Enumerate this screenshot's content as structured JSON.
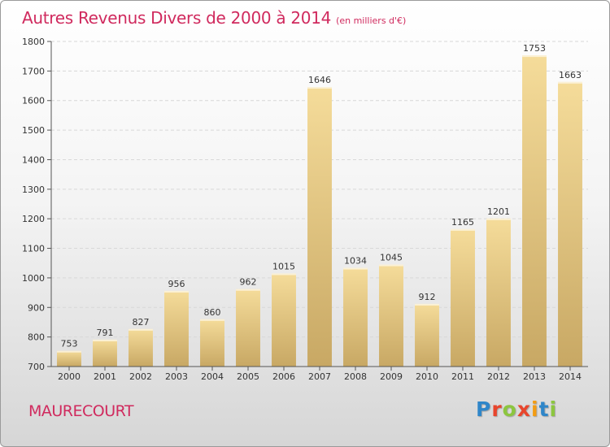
{
  "header": {
    "title": "Autres Revenus Divers de 2000 à 2014",
    "subtitle": "(en milliers d'€)"
  },
  "commune": "MAURECOURT",
  "logo": {
    "letters": [
      "P",
      "r",
      "o",
      "x",
      "i",
      "t",
      "i"
    ],
    "colors": [
      "#2f86c9",
      "#e8452c",
      "#8cc63f",
      "#e8452c",
      "#f39c12",
      "#2f86c9",
      "#8cc63f"
    ]
  },
  "colors": {
    "bar_light": "#f5dc9a",
    "bar_dark": "#c8a864",
    "accent": "#d02a5e"
  },
  "chart_data": {
    "type": "bar",
    "title": "Autres Revenus Divers de 2000 à 2014",
    "subtitle": "(en milliers d'€)",
    "categories": [
      "2000",
      "2001",
      "2002",
      "2003",
      "2004",
      "2005",
      "2006",
      "2007",
      "2008",
      "2009",
      "2010",
      "2011",
      "2012",
      "2013",
      "2014"
    ],
    "values": [
      753,
      791,
      827,
      956,
      860,
      962,
      1015,
      1646,
      1034,
      1045,
      912,
      1165,
      1201,
      1753,
      1663
    ],
    "ylim": [
      700,
      1800
    ],
    "yticks": [
      700,
      800,
      900,
      1000,
      1100,
      1200,
      1300,
      1400,
      1500,
      1600,
      1700,
      1800
    ],
    "grid": true
  }
}
